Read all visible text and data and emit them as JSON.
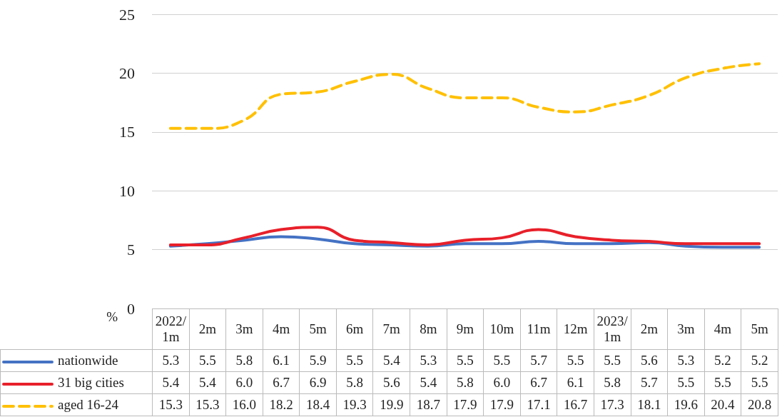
{
  "chart_data": {
    "type": "line",
    "ylabel": "%",
    "categories": [
      "2022/1m",
      "2m",
      "3m",
      "4m",
      "5m",
      "6m",
      "7m",
      "8m",
      "9m",
      "10m",
      "11m",
      "12m",
      "2023/1m",
      "2m",
      "3m",
      "4m",
      "5m"
    ],
    "ylim": [
      0,
      25
    ],
    "yticks": [
      0,
      5,
      10,
      15,
      20,
      25
    ],
    "grid": "y",
    "legend": "bottom",
    "marker": "none",
    "series": [
      {
        "name": "nationwide",
        "color": "#4472c4",
        "line_style": "solid",
        "values": [
          5.3,
          5.5,
          5.8,
          6.1,
          5.9,
          5.5,
          5.4,
          5.3,
          5.5,
          5.5,
          5.7,
          5.5,
          5.5,
          5.6,
          5.3,
          5.2,
          5.2
        ],
        "value_labels": [
          "5.3",
          "5.5",
          "5.8",
          "6.1",
          "5.9",
          "5.5",
          "5.4",
          "5.3",
          "5.5",
          "5.5",
          "5.7",
          "5.5",
          "5.5",
          "5.6",
          "5.3",
          "5.2",
          "5.2"
        ]
      },
      {
        "name": "31 big cities",
        "color": "#e8202a",
        "line_style": "solid",
        "values": [
          5.4,
          5.4,
          6.0,
          6.7,
          6.9,
          5.8,
          5.6,
          5.4,
          5.8,
          6.0,
          6.7,
          6.1,
          5.8,
          5.7,
          5.5,
          5.5,
          5.5
        ],
        "value_labels": [
          "5.4",
          "5.4",
          "6.0",
          "6.7",
          "6.9",
          "5.8",
          "5.6",
          "5.4",
          "5.8",
          "6.0",
          "6.7",
          "6.1",
          "5.8",
          "5.7",
          "5.5",
          "5.5",
          "5.5"
        ]
      },
      {
        "name": "aged 16-24",
        "color": "#ffc000",
        "line_style": "dashed",
        "values": [
          15.3,
          15.3,
          16.0,
          18.2,
          18.4,
          19.3,
          19.9,
          18.7,
          17.9,
          17.9,
          17.1,
          16.7,
          17.3,
          18.1,
          19.6,
          20.4,
          20.8
        ],
        "value_labels": [
          "15.3",
          "15.3",
          "16.0",
          "18.2",
          "18.4",
          "19.3",
          "19.9",
          "18.7",
          "17.9",
          "17.9",
          "17.1",
          "16.7",
          "17.3",
          "18.1",
          "19.6",
          "20.4",
          "20.8"
        ]
      }
    ]
  }
}
